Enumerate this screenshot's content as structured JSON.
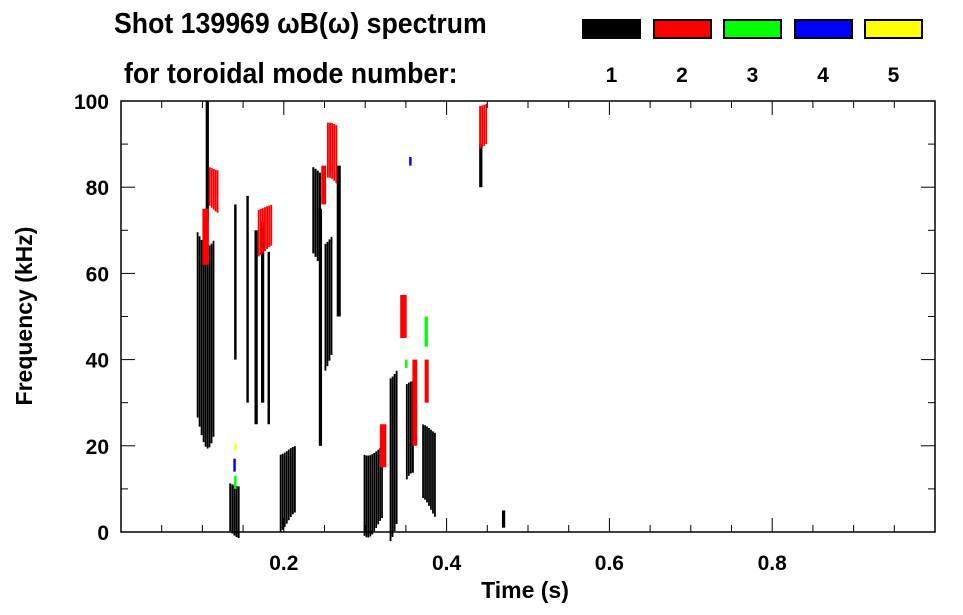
{
  "chart_data": {
    "type": "heatmap",
    "title": "Shot 139969 ωB(ω) spectrum",
    "subtitle": "for toroidal mode number:",
    "xlabel": "Time (s)",
    "ylabel": "Frequency (kHz)",
    "xlim": [
      0,
      1
    ],
    "ylim": [
      0,
      100
    ],
    "xticks": [
      0.2,
      0.4,
      0.6,
      0.8
    ],
    "xtick_labels": [
      "0.2",
      "0.4",
      "0.6",
      "0.8"
    ],
    "yticks": [
      0,
      20,
      40,
      60,
      80,
      100
    ],
    "ytick_labels": [
      "0",
      "20",
      "40",
      "60",
      "80",
      "100"
    ],
    "legend": [
      {
        "label": "1",
        "color": "#000000"
      },
      {
        "label": "2",
        "color": "#ff0000"
      },
      {
        "label": "3",
        "color": "#00ff00"
      },
      {
        "label": "4",
        "color": "#0000ff"
      },
      {
        "label": "5",
        "color": "#ffff00"
      }
    ],
    "features": [
      {
        "mode": 1,
        "t": [
          0.093,
          0.115
        ],
        "f": [
          25,
          72
        ]
      },
      {
        "mode": 1,
        "t": [
          0.104,
          0.108
        ],
        "f": [
          72,
          100
        ]
      },
      {
        "mode": 1,
        "t": [
          0.133,
          0.146
        ],
        "f": [
          0,
          12
        ]
      },
      {
        "mode": 1,
        "t": [
          0.139,
          0.142
        ],
        "f": [
          40,
          76
        ]
      },
      {
        "mode": 1,
        "t": [
          0.154,
          0.157
        ],
        "f": [
          30,
          78
        ]
      },
      {
        "mode": 1,
        "t": [
          0.164,
          0.168
        ],
        "f": [
          25,
          70
        ]
      },
      {
        "mode": 1,
        "t": [
          0.172,
          0.176
        ],
        "f": [
          30,
          72
        ]
      },
      {
        "mode": 1,
        "t": [
          0.18,
          0.183
        ],
        "f": [
          25,
          65
        ]
      },
      {
        "mode": 1,
        "t": [
          0.195,
          0.215
        ],
        "f": [
          2,
          20
        ]
      },
      {
        "mode": 1,
        "t": [
          0.235,
          0.246
        ],
        "f": [
          62,
          85
        ]
      },
      {
        "mode": 1,
        "t": [
          0.243,
          0.247
        ],
        "f": [
          20,
          75
        ]
      },
      {
        "mode": 1,
        "t": [
          0.25,
          0.26
        ],
        "f": [
          40,
          70
        ]
      },
      {
        "mode": 1,
        "t": [
          0.265,
          0.27
        ],
        "f": [
          50,
          85
        ]
      },
      {
        "mode": 1,
        "t": [
          0.298,
          0.322
        ],
        "f": [
          1,
          20
        ]
      },
      {
        "mode": 1,
        "t": [
          0.33,
          0.34
        ],
        "f": [
          2,
          40
        ]
      },
      {
        "mode": 1,
        "t": [
          0.35,
          0.36
        ],
        "f": [
          10,
          35
        ]
      },
      {
        "mode": 1,
        "t": [
          0.37,
          0.387
        ],
        "f": [
          5,
          25
        ]
      },
      {
        "mode": 1,
        "t": [
          0.44,
          0.444
        ],
        "f": [
          80,
          90
        ]
      },
      {
        "mode": 1,
        "t": [
          0.468,
          0.472
        ],
        "f": [
          1,
          5
        ]
      },
      {
        "mode": 2,
        "t": [
          0.108,
          0.12
        ],
        "f": [
          75,
          85
        ]
      },
      {
        "mode": 2,
        "t": [
          0.1,
          0.108
        ],
        "f": [
          62,
          75
        ]
      },
      {
        "mode": 2,
        "t": [
          0.168,
          0.186
        ],
        "f": [
          65,
          76
        ]
      },
      {
        "mode": 2,
        "t": [
          0.253,
          0.266
        ],
        "f": [
          80,
          95
        ]
      },
      {
        "mode": 2,
        "t": [
          0.246,
          0.252
        ],
        "f": [
          76,
          85
        ]
      },
      {
        "mode": 2,
        "t": [
          0.343,
          0.351
        ],
        "f": [
          45,
          55
        ]
      },
      {
        "mode": 2,
        "t": [
          0.358,
          0.364
        ],
        "f": [
          20,
          40
        ]
      },
      {
        "mode": 2,
        "t": [
          0.373,
          0.378
        ],
        "f": [
          30,
          40
        ]
      },
      {
        "mode": 2,
        "t": [
          0.44,
          0.45
        ],
        "f": [
          90,
          100
        ]
      },
      {
        "mode": 2,
        "t": [
          0.318,
          0.326
        ],
        "f": [
          15,
          25
        ]
      },
      {
        "mode": 3,
        "t": [
          0.139,
          0.142
        ],
        "f": [
          10,
          13
        ]
      },
      {
        "mode": 3,
        "t": [
          0.373,
          0.377
        ],
        "f": [
          43,
          50
        ]
      },
      {
        "mode": 3,
        "t": [
          0.349,
          0.352
        ],
        "f": [
          38,
          40
        ]
      },
      {
        "mode": 4,
        "t": [
          0.138,
          0.141
        ],
        "f": [
          14,
          17
        ]
      },
      {
        "mode": 4,
        "t": [
          0.354,
          0.357
        ],
        "f": [
          85,
          87
        ]
      },
      {
        "mode": 5,
        "t": [
          0.139,
          0.142
        ],
        "f": [
          19,
          20.5
        ]
      }
    ]
  }
}
